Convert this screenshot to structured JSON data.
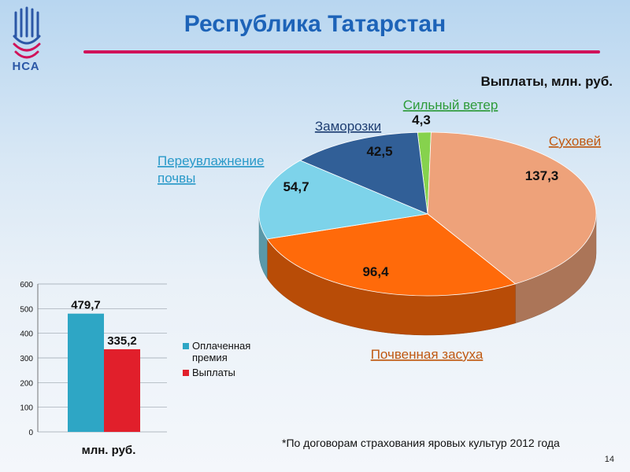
{
  "header": {
    "title": "Республика Татарстан",
    "logo_text": "НСА",
    "slide_number": "14"
  },
  "footnote": "*По договорам страхования яровых культур 2012 года",
  "colors": {
    "title": "#1d63b8",
    "rule": "#d0125a",
    "bar_premium": "#2ea6c5",
    "bar_payout": "#e11f2b"
  },
  "chart_data": [
    {
      "type": "pie",
      "title": "Выплаты, млн. руб.",
      "slices": [
        {
          "label": "Сильный ветер",
          "value": 4.3,
          "value_label": "4,3",
          "color": "#86d24d",
          "label_color": "#2e9b3a"
        },
        {
          "label": "Суховей",
          "value": 137.3,
          "value_label": "137,3",
          "color": "#eea27a",
          "label_color": "#c05a12"
        },
        {
          "label": "Почвенная засуха",
          "value": 96.4,
          "value_label": "96,4",
          "color": "#ff6a0a",
          "label_color": "#c05a12"
        },
        {
          "label": "Переувлажнение почвы",
          "value": 54.7,
          "value_label": "54,7",
          "color": "#7dd3ea",
          "label_color": "#2a9ac9"
        },
        {
          "label": "Заморозки",
          "value": 42.5,
          "value_label": "42,5",
          "color": "#315f97",
          "label_color": "#1f3f73"
        }
      ]
    },
    {
      "type": "bar",
      "xlabel": "млн. руб.",
      "ylim": [
        0,
        600
      ],
      "yticks": [
        "0",
        "100",
        "200",
        "300",
        "400",
        "500",
        "600"
      ],
      "grid": true,
      "legend_position": "right",
      "series": [
        {
          "name": "Оплаченная премия",
          "value": 479.7,
          "value_label": "479,7",
          "color": "#2ea6c5"
        },
        {
          "name": "Выплаты",
          "value": 335.2,
          "value_label": "335,2",
          "color": "#e11f2b"
        }
      ]
    }
  ]
}
